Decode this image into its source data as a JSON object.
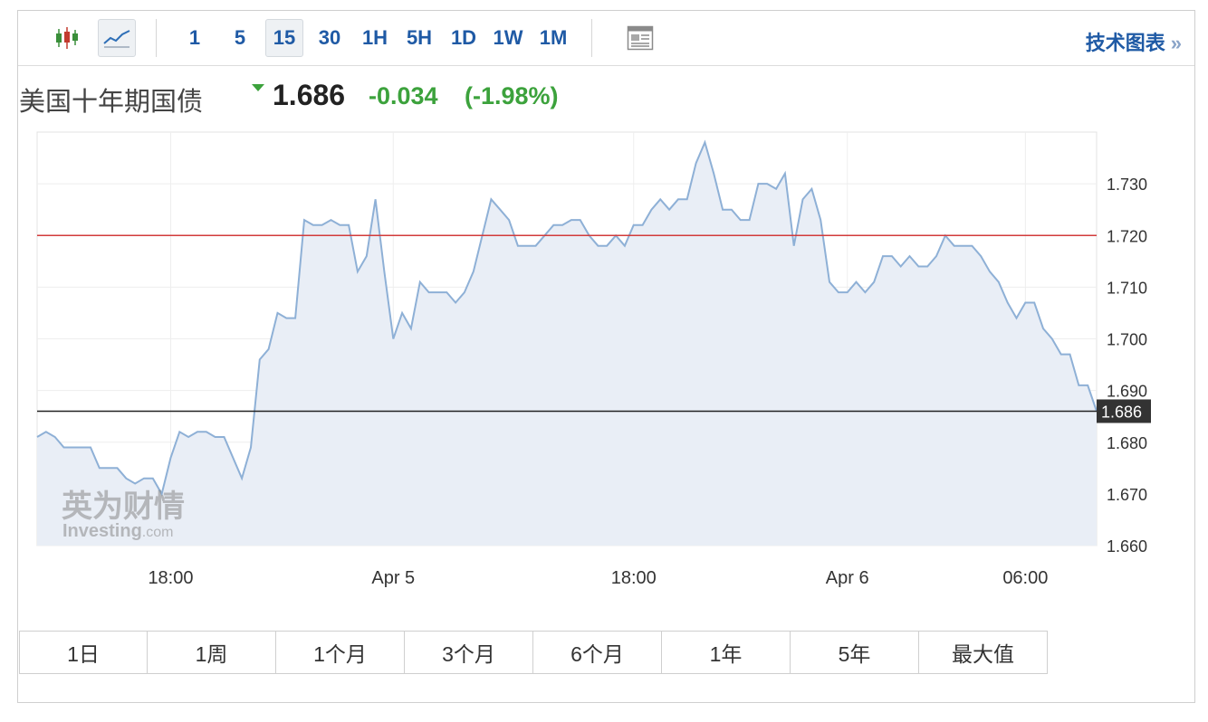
{
  "toolbar": {
    "icons": [
      "candlestick-icon",
      "line-chart-icon",
      "news-table-icon"
    ],
    "intervals": [
      "1",
      "5",
      "15",
      "30",
      "1H",
      "5H",
      "1D",
      "1W",
      "1M"
    ],
    "selected_interval": "15",
    "tech_chart_label": "技术图表",
    "tech_chart_chevron": "»"
  },
  "quote": {
    "name": "美国十年期国债",
    "price": "1.686",
    "change": "-0.034",
    "change_pct": "(-1.98%)",
    "direction": "down",
    "colors": {
      "down": "#3ca23c",
      "price": "#222222"
    }
  },
  "watermark": {
    "cn": "英为财情",
    "en": "Investing",
    "en_suffix": ".com"
  },
  "chart_data": {
    "type": "area",
    "y_ticks": [
      1.66,
      1.67,
      1.68,
      1.69,
      1.7,
      1.71,
      1.72,
      1.73
    ],
    "y_tick_labels": [
      "1.660",
      "1.670",
      "1.680",
      "1.690",
      "1.700",
      "1.710",
      "1.720",
      "1.730"
    ],
    "ylim": [
      1.66,
      1.74
    ],
    "x_tick_labels": [
      "18:00",
      "Apr 5",
      "18:00",
      "Apr 6",
      "06:00"
    ],
    "x_tick_index": [
      15,
      40,
      67,
      91,
      111
    ],
    "series": [
      {
        "values": [
          1.681,
          1.682,
          1.681,
          1.679,
          1.679,
          1.679,
          1.679,
          1.675,
          1.675,
          1.675,
          1.673,
          1.672,
          1.673,
          1.673,
          1.67,
          1.677,
          1.682,
          1.681,
          1.682,
          1.682,
          1.681,
          1.681,
          1.677,
          1.673,
          1.679,
          1.696,
          1.698,
          1.705,
          1.704,
          1.704,
          1.723,
          1.722,
          1.722,
          1.723,
          1.722,
          1.722,
          1.713,
          1.716,
          1.727,
          1.713,
          1.7,
          1.705,
          1.702,
          1.711,
          1.709,
          1.709,
          1.709,
          1.707,
          1.709,
          1.713,
          1.72,
          1.727,
          1.725,
          1.723,
          1.718,
          1.718,
          1.718,
          1.72,
          1.722,
          1.722,
          1.723,
          1.723,
          1.72,
          1.718,
          1.718,
          1.72,
          1.718,
          1.722,
          1.722,
          1.725,
          1.727,
          1.725,
          1.727,
          1.727,
          1.734,
          1.738,
          1.732,
          1.725,
          1.725,
          1.723,
          1.723,
          1.73,
          1.73,
          1.729,
          1.732,
          1.718,
          1.727,
          1.729,
          1.723,
          1.711,
          1.709,
          1.709,
          1.711,
          1.709,
          1.711,
          1.716,
          1.716,
          1.714,
          1.716,
          1.714,
          1.714,
          1.716,
          1.72,
          1.718,
          1.718,
          1.718,
          1.716,
          1.713,
          1.711,
          1.707,
          1.704,
          1.707,
          1.707,
          1.702,
          1.7,
          1.697,
          1.697,
          1.691,
          1.691,
          1.686
        ]
      }
    ],
    "reference_line": {
      "value": 1.72,
      "color": "#d23b3b"
    },
    "last_price_line": {
      "value": 1.686,
      "label": "1.686",
      "color": "#222222"
    },
    "grid": true,
    "fill_color": "#e9eef6",
    "line_color": "#8eb0d6"
  },
  "range_buttons": [
    "1日",
    "1周",
    "1个月",
    "3个月",
    "6个月",
    "1年",
    "5年",
    "最大值"
  ]
}
